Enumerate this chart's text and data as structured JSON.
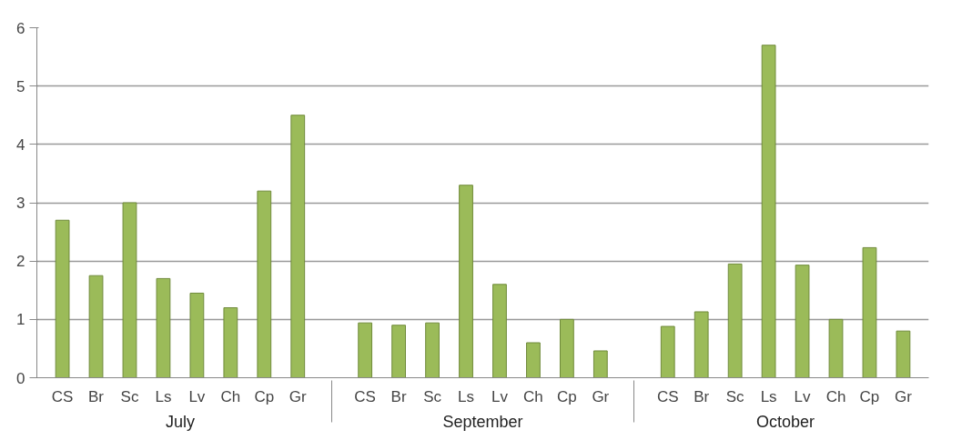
{
  "chart_data": {
    "type": "bar",
    "categories": [
      "CS",
      "Br",
      "Sc",
      "Ls",
      "Lv",
      "Ch",
      "Cp",
      "Gr",
      "CS",
      "Br",
      "Sc",
      "Ls",
      "Lv",
      "Ch",
      "Cp",
      "Gr",
      "CS",
      "Br",
      "Sc",
      "Ls",
      "Lv",
      "Ch",
      "Cp",
      "Gr"
    ],
    "annotations": [
      "July",
      "September",
      "October"
    ],
    "values": [
      2.7,
      1.75,
      3.0,
      1.7,
      1.45,
      1.2,
      3.2,
      4.5,
      0.94,
      0.9,
      0.94,
      3.3,
      1.6,
      0.6,
      1.0,
      0.46,
      0.88,
      1.13,
      1.95,
      5.7,
      1.93,
      1.0,
      2.23,
      0.8
    ],
    "color": "#9bbb59",
    "ylim": [
      0,
      6
    ],
    "yticks": [
      0,
      1,
      2,
      3,
      4,
      5,
      6
    ],
    "grid": "y"
  }
}
